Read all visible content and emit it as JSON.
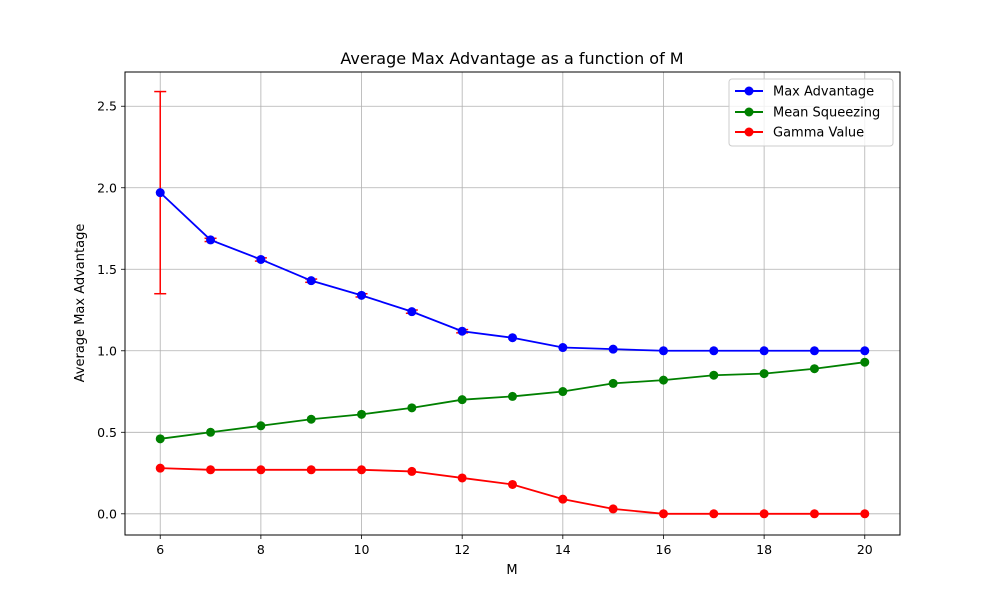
{
  "chart_data": {
    "type": "line",
    "title": "Average Max Advantage as a function of M",
    "xlabel": "M",
    "ylabel": "Average Max Advantage",
    "xlim": [
      5.3,
      20.7
    ],
    "ylim": [
      -0.13,
      2.71
    ],
    "xticks": [
      6,
      8,
      10,
      12,
      14,
      16,
      18,
      20
    ],
    "yticks": [
      0.0,
      0.5,
      1.0,
      1.5,
      2.0,
      2.5
    ],
    "ytick_labels": [
      "0.0",
      "0.5",
      "1.0",
      "1.5",
      "2.0",
      "2.5"
    ],
    "grid": true,
    "legend_position": "top-right",
    "x": [
      6,
      7,
      8,
      9,
      10,
      11,
      12,
      13,
      14,
      15,
      16,
      17,
      18,
      19,
      20
    ],
    "series": [
      {
        "name": "Max Advantage",
        "color": "#0000ff",
        "values": [
          1.97,
          1.68,
          1.56,
          1.43,
          1.34,
          1.24,
          1.12,
          1.08,
          1.02,
          1.01,
          1.0,
          1.0,
          1.0,
          1.0,
          1.0
        ],
        "error": [
          0.62,
          0.01,
          0.01,
          0.01,
          0.01,
          0.01,
          0.01,
          0.0,
          0.0,
          0.0,
          0.0,
          0.0,
          0.0,
          0.0,
          0.0
        ],
        "error_color": "#ff0000"
      },
      {
        "name": "Mean Squeezing",
        "color": "#008000",
        "values": [
          0.46,
          0.5,
          0.54,
          0.58,
          0.61,
          0.65,
          0.7,
          0.72,
          0.75,
          0.8,
          0.82,
          0.85,
          0.86,
          0.89,
          0.93
        ]
      },
      {
        "name": "Gamma Value",
        "color": "#ff0000",
        "values": [
          0.28,
          0.27,
          0.27,
          0.27,
          0.27,
          0.26,
          0.22,
          0.18,
          0.09,
          0.03,
          0.0,
          0.0,
          0.0,
          0.0,
          0.0
        ]
      }
    ]
  }
}
